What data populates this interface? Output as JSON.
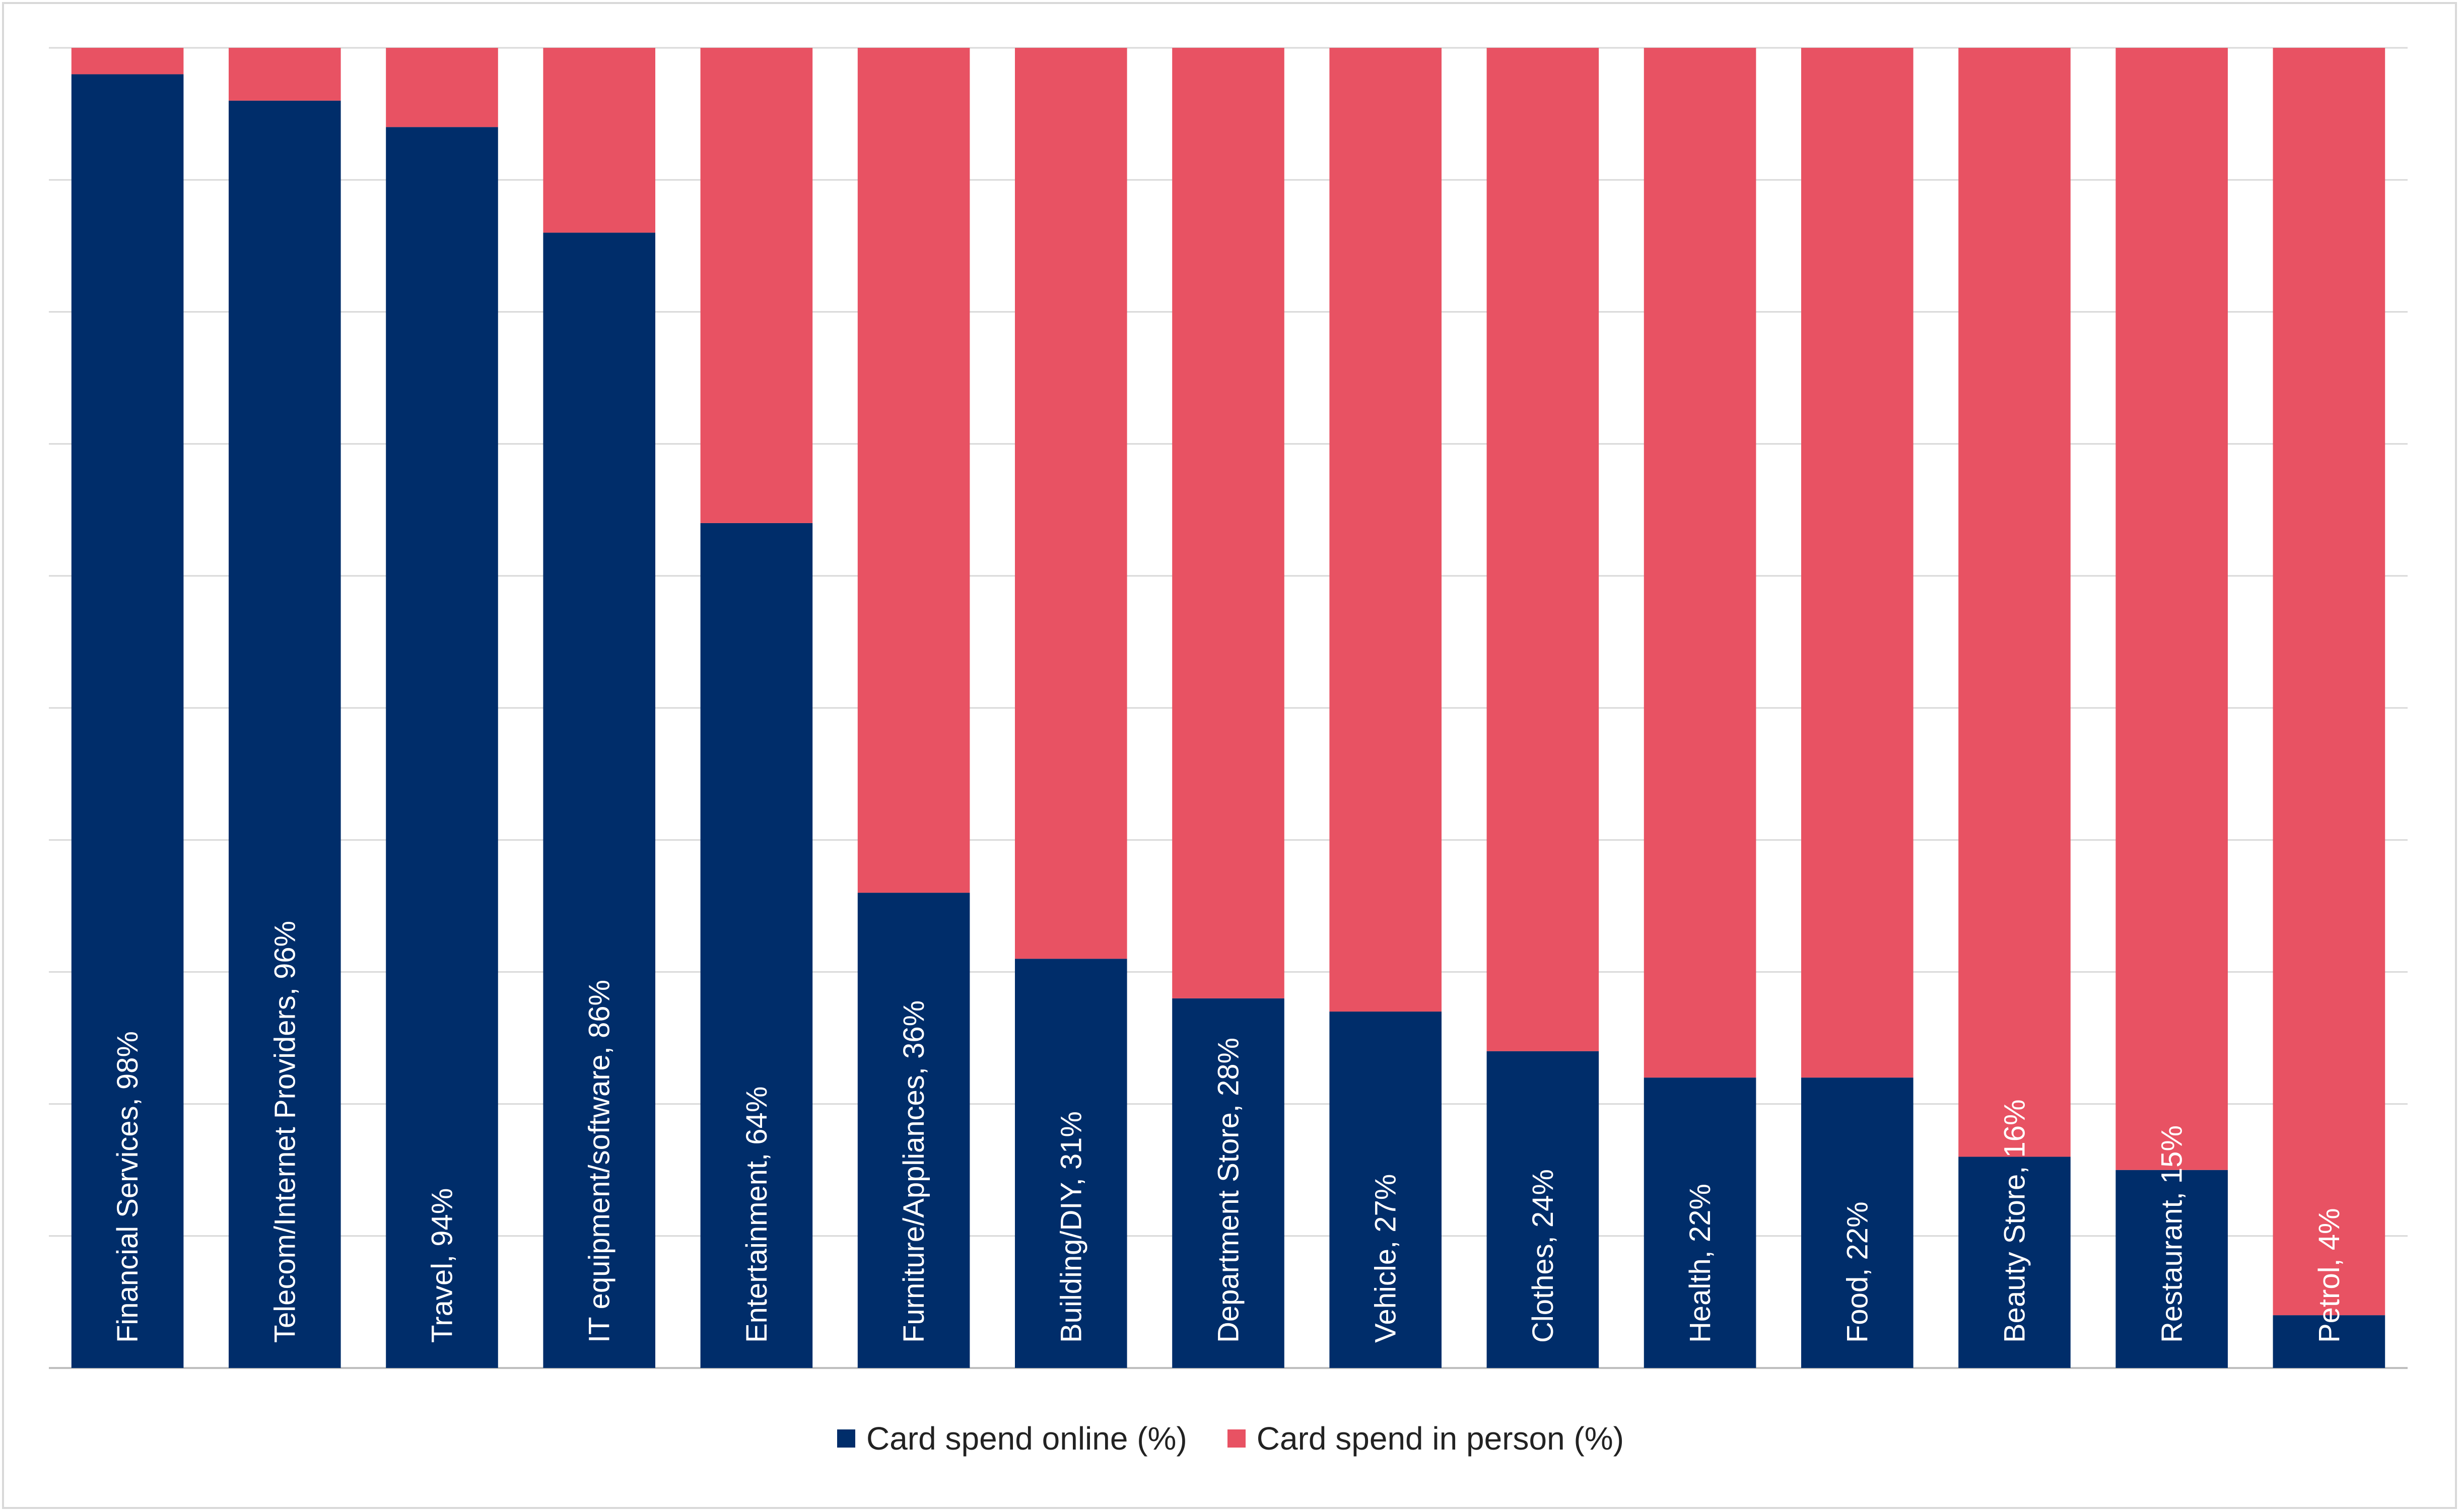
{
  "chart_data": {
    "type": "bar",
    "stacked": true,
    "normalized_percent": true,
    "categories": [
      "Financial Services",
      "Telecom/Internet Providers",
      "Travel",
      "IT equipment/software",
      "Entertainment",
      "Furniture/Appliances",
      "Building/DIY",
      "Department Store",
      "Vehicle",
      "Clothes",
      "Health",
      "Food",
      "Beauty Store",
      "Restaurant",
      "Petrol"
    ],
    "data_labels": [
      "Financial Services, 98%",
      "Telecom/Internet Providers, 96%",
      "Travel, 94%",
      "IT equipment/software, 86%",
      "Entertainment, 64%",
      "Furniture/Appliances, 36%",
      "Building/DIY, 31%",
      "Department Store, 28%",
      "Vehicle, 27%",
      "Clothes, 24%",
      "Health, 22%",
      "Food, 22%",
      "Beauty Store, 16%",
      "Restaurant, 15%",
      "Petrol, 4%"
    ],
    "series": [
      {
        "name": "Card spend online (%)",
        "color": "#002d6a",
        "values": [
          98,
          96,
          94,
          86,
          64,
          36,
          31,
          28,
          27,
          24,
          22,
          22,
          16,
          15,
          4
        ]
      },
      {
        "name": "Card spend in person (%)",
        "color": "#e85263",
        "values": [
          2,
          4,
          6,
          14,
          36,
          64,
          69,
          72,
          73,
          76,
          78,
          78,
          84,
          85,
          96
        ]
      }
    ],
    "ylim": [
      0,
      100
    ],
    "grid": true,
    "legend_position": "bottom",
    "title": "",
    "xlabel": "",
    "ylabel": ""
  }
}
